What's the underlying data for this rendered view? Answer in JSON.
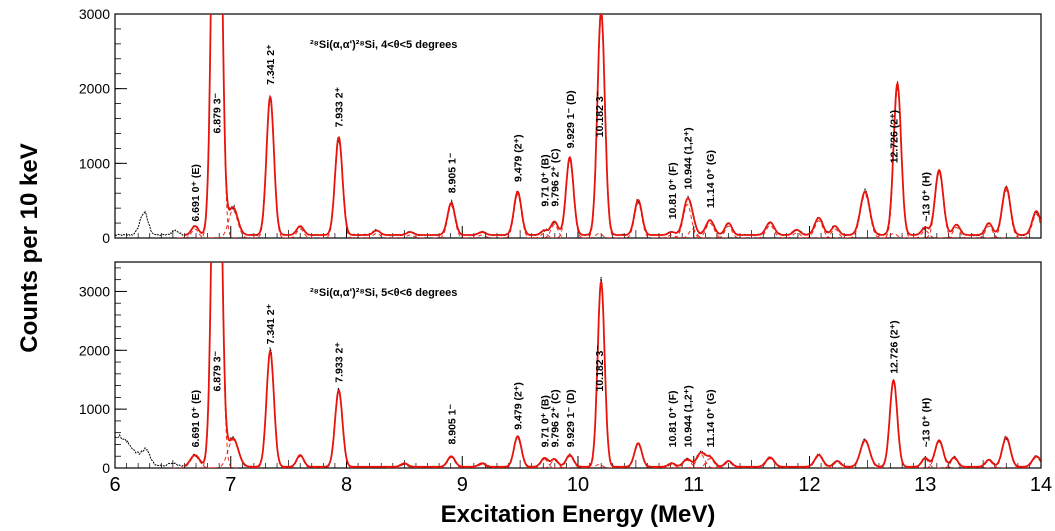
{
  "chart_data": {
    "type": "line",
    "xlabel": "Excitation Energy (MeV)",
    "ylabel": "Counts per 10 keV",
    "xlim": [
      6,
      14
    ],
    "x_ticks": [
      "6",
      "7",
      "8",
      "9",
      "10",
      "11",
      "12",
      "13",
      "14"
    ],
    "colors": {
      "data": "#000000",
      "fit": "#e8140c",
      "components": "#e8140c"
    },
    "panels": [
      {
        "title": "²⁸Si(α,α')²⁸Si, 4<θ<5 degrees",
        "ylim": [
          0,
          3000
        ],
        "y_ticks": [
          "0",
          "1000",
          "2000",
          "3000"
        ],
        "baseline": 40,
        "peaks": [
          {
            "E": 6.25,
            "A": 300,
            "w": 0.035,
            "fit": false
          },
          {
            "E": 6.52,
            "A": 60,
            "w": 0.03,
            "fit": false
          },
          {
            "E": 6.691,
            "A": 120,
            "w": 0.03,
            "fit": true
          },
          {
            "E": 6.879,
            "A": 9000,
            "w": 0.035,
            "fit": true
          },
          {
            "E": 7.02,
            "A": 370,
            "w": 0.04,
            "fit": true
          },
          {
            "E": 7.341,
            "A": 1850,
            "w": 0.032,
            "fit": true
          },
          {
            "E": 7.6,
            "A": 120,
            "w": 0.03,
            "fit": true
          },
          {
            "E": 7.933,
            "A": 1310,
            "w": 0.032,
            "fit": true
          },
          {
            "E": 8.26,
            "A": 60,
            "w": 0.03,
            "fit": true
          },
          {
            "E": 8.55,
            "A": 40,
            "w": 0.03,
            "fit": true
          },
          {
            "E": 8.905,
            "A": 430,
            "w": 0.032,
            "fit": true
          },
          {
            "E": 9.17,
            "A": 40,
            "w": 0.03,
            "fit": true
          },
          {
            "E": 9.479,
            "A": 580,
            "w": 0.032,
            "fit": true
          },
          {
            "E": 9.71,
            "A": 60,
            "w": 0.03,
            "fit": true
          },
          {
            "E": 9.796,
            "A": 180,
            "w": 0.03,
            "fit": true
          },
          {
            "E": 9.929,
            "A": 1040,
            "w": 0.032,
            "fit": true
          },
          {
            "E": 10.182,
            "A": 60,
            "w": 0.03,
            "fit": true
          },
          {
            "E": 10.2,
            "A": 2950,
            "w": 0.032,
            "fit": true
          },
          {
            "E": 10.52,
            "A": 470,
            "w": 0.032,
            "fit": true
          },
          {
            "E": 10.81,
            "A": 40,
            "w": 0.03,
            "fit": true
          },
          {
            "E": 10.944,
            "A": 450,
            "w": 0.035,
            "fit": true
          },
          {
            "E": 10.99,
            "A": 120,
            "w": 0.03,
            "fit": true
          },
          {
            "E": 11.14,
            "A": 200,
            "w": 0.035,
            "fit": true
          },
          {
            "E": 11.3,
            "A": 160,
            "w": 0.03,
            "fit": true
          },
          {
            "E": 11.66,
            "A": 170,
            "w": 0.035,
            "fit": true
          },
          {
            "E": 11.89,
            "A": 70,
            "w": 0.03,
            "fit": true
          },
          {
            "E": 12.08,
            "A": 230,
            "w": 0.035,
            "fit": true
          },
          {
            "E": 12.22,
            "A": 120,
            "w": 0.03,
            "fit": true
          },
          {
            "E": 12.48,
            "A": 580,
            "w": 0.04,
            "fit": true
          },
          {
            "E": 12.726,
            "A": 60,
            "w": 0.03,
            "fit": true
          },
          {
            "E": 12.76,
            "A": 2000,
            "w": 0.032,
            "fit": true
          },
          {
            "E": 13.0,
            "A": 100,
            "w": 0.03,
            "fit": true
          },
          {
            "E": 13.12,
            "A": 870,
            "w": 0.035,
            "fit": true
          },
          {
            "E": 13.27,
            "A": 140,
            "w": 0.03,
            "fit": true
          },
          {
            "E": 13.55,
            "A": 160,
            "w": 0.03,
            "fit": true
          },
          {
            "E": 13.7,
            "A": 640,
            "w": 0.035,
            "fit": true
          },
          {
            "E": 13.96,
            "A": 320,
            "w": 0.035,
            "fit": true
          }
        ],
        "annotations": [
          {
            "text": "6.691 0⁺ (E)",
            "E": 6.691,
            "y": 220
          },
          {
            "text": "6.879 3⁻",
            "E": 6.879,
            "y": 1400
          },
          {
            "text": "7.341 2⁺",
            "E": 7.341,
            "y": 2050
          },
          {
            "text": "7.933 2⁺",
            "E": 7.933,
            "y": 1480
          },
          {
            "text": "8.905 1⁻",
            "E": 8.905,
            "y": 600
          },
          {
            "text": "9.479 (2⁺)",
            "E": 9.479,
            "y": 750
          },
          {
            "text": "9.71 0⁺ (B)",
            "E": 9.71,
            "y": 420
          },
          {
            "text": "9.796 2⁺ (C)",
            "E": 9.796,
            "y": 420
          },
          {
            "text": "9.929 1⁻ (D)",
            "E": 9.929,
            "y": 1200
          },
          {
            "text": "10.182 3⁻",
            "E": 10.182,
            "y": 1350
          },
          {
            "text": "10.81 0⁺ (F)",
            "E": 10.81,
            "y": 250
          },
          {
            "text": "10.944 (1,2⁺)",
            "E": 10.944,
            "y": 650
          },
          {
            "text": "11.14 0⁺ (G)",
            "E": 11.14,
            "y": 400
          },
          {
            "text": "12.726 (2⁺)",
            "E": 12.726,
            "y": 1000
          },
          {
            "text": "~13 0⁺ (H)",
            "E": 13.0,
            "y": 220
          }
        ]
      },
      {
        "title": "²⁸Si(α,α')²⁸Si, 5<θ<6 degrees",
        "ylim": [
          0,
          3500
        ],
        "y_ticks": [
          "0",
          "1000",
          "2000",
          "3000"
        ],
        "baseline": 20,
        "peaks": [
          {
            "E": 6.0,
            "A": 530,
            "w": 0.15,
            "fit": false
          },
          {
            "E": 6.27,
            "A": 200,
            "w": 0.03,
            "fit": false
          },
          {
            "E": 6.5,
            "A": 60,
            "w": 0.04,
            "fit": false
          },
          {
            "E": 6.691,
            "A": 200,
            "w": 0.04,
            "fit": true
          },
          {
            "E": 6.879,
            "A": 9500,
            "w": 0.035,
            "fit": true
          },
          {
            "E": 7.02,
            "A": 480,
            "w": 0.045,
            "fit": true
          },
          {
            "E": 7.341,
            "A": 1960,
            "w": 0.032,
            "fit": true
          },
          {
            "E": 7.6,
            "A": 200,
            "w": 0.03,
            "fit": true
          },
          {
            "E": 7.933,
            "A": 1300,
            "w": 0.032,
            "fit": true
          },
          {
            "E": 8.5,
            "A": 60,
            "w": 0.03,
            "fit": true
          },
          {
            "E": 8.905,
            "A": 180,
            "w": 0.032,
            "fit": true
          },
          {
            "E": 9.17,
            "A": 60,
            "w": 0.03,
            "fit": true
          },
          {
            "E": 9.479,
            "A": 520,
            "w": 0.032,
            "fit": true
          },
          {
            "E": 9.71,
            "A": 150,
            "w": 0.03,
            "fit": true
          },
          {
            "E": 9.796,
            "A": 130,
            "w": 0.03,
            "fit": true
          },
          {
            "E": 9.929,
            "A": 200,
            "w": 0.032,
            "fit": true
          },
          {
            "E": 10.182,
            "A": 60,
            "w": 0.03,
            "fit": true
          },
          {
            "E": 10.2,
            "A": 3100,
            "w": 0.03,
            "fit": true
          },
          {
            "E": 10.52,
            "A": 400,
            "w": 0.032,
            "fit": true
          },
          {
            "E": 10.81,
            "A": 60,
            "w": 0.03,
            "fit": true
          },
          {
            "E": 10.944,
            "A": 130,
            "w": 0.035,
            "fit": true
          },
          {
            "E": 11.06,
            "A": 230,
            "w": 0.035,
            "fit": true
          },
          {
            "E": 11.14,
            "A": 160,
            "w": 0.035,
            "fit": true
          },
          {
            "E": 11.3,
            "A": 100,
            "w": 0.03,
            "fit": true
          },
          {
            "E": 11.66,
            "A": 160,
            "w": 0.035,
            "fit": true
          },
          {
            "E": 12.08,
            "A": 200,
            "w": 0.035,
            "fit": true
          },
          {
            "E": 12.24,
            "A": 100,
            "w": 0.03,
            "fit": true
          },
          {
            "E": 12.48,
            "A": 450,
            "w": 0.04,
            "fit": true
          },
          {
            "E": 12.726,
            "A": 1470,
            "w": 0.032,
            "fit": true
          },
          {
            "E": 13.0,
            "A": 150,
            "w": 0.03,
            "fit": true
          },
          {
            "E": 13.12,
            "A": 450,
            "w": 0.035,
            "fit": true
          },
          {
            "E": 13.25,
            "A": 160,
            "w": 0.03,
            "fit": true
          },
          {
            "E": 13.55,
            "A": 120,
            "w": 0.03,
            "fit": true
          },
          {
            "E": 13.7,
            "A": 500,
            "w": 0.035,
            "fit": true
          },
          {
            "E": 13.96,
            "A": 180,
            "w": 0.035,
            "fit": true
          }
        ],
        "annotations": [
          {
            "text": "6.691 0⁺ (E)",
            "E": 6.691,
            "y": 350
          },
          {
            "text": "6.879 3⁻",
            "E": 6.879,
            "y": 1300
          },
          {
            "text": "7.341 2⁺",
            "E": 7.341,
            "y": 2100
          },
          {
            "text": "7.933 2⁺",
            "E": 7.933,
            "y": 1450
          },
          {
            "text": "8.905 1⁻",
            "E": 8.905,
            "y": 400
          },
          {
            "text": "9.479 (2⁺)",
            "E": 9.479,
            "y": 650
          },
          {
            "text": "9.71 0⁺ (B)",
            "E": 9.71,
            "y": 350
          },
          {
            "text": "9.796 2⁺ (C)",
            "E": 9.796,
            "y": 350
          },
          {
            "text": "9.929 1⁻ (D)",
            "E": 9.929,
            "y": 350
          },
          {
            "text": "10.182 3⁻",
            "E": 10.182,
            "y": 1300
          },
          {
            "text": "10.81 0⁺ (F)",
            "E": 10.81,
            "y": 350
          },
          {
            "text": "10.944 (1,2⁺)",
            "E": 10.944,
            "y": 350
          },
          {
            "text": "11.14 0⁺ (G)",
            "E": 11.14,
            "y": 350
          },
          {
            "text": "12.726 (2⁺)",
            "E": 12.726,
            "y": 1600
          },
          {
            "text": "~13 0⁺ (H)",
            "E": 13.0,
            "y": 350
          }
        ]
      }
    ]
  }
}
